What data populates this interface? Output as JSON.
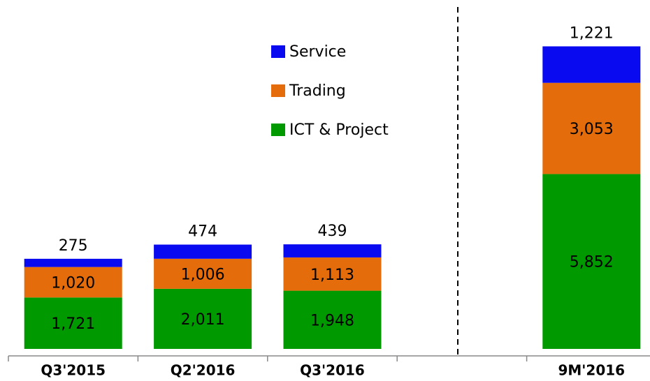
{
  "chart_data": {
    "type": "stacked_bar",
    "categories": [
      "Q3'2015",
      "Q2'2016",
      "Q3'2016",
      null,
      "9M'2016"
    ],
    "series": [
      {
        "name": "ICT & Project",
        "color": "#009900",
        "values": [
          1721,
          2011,
          1948,
          null,
          5852
        ],
        "value_labels": [
          "1,721",
          "2,011",
          "1,948",
          null,
          "5,852"
        ]
      },
      {
        "name": "Trading",
        "color": "#e46c0a",
        "values": [
          1020,
          1006,
          1113,
          null,
          3053
        ],
        "value_labels": [
          "1,020",
          "1,006",
          "1,113",
          null,
          "3,053"
        ]
      },
      {
        "name": "Service",
        "color": "#0a0af0",
        "values": [
          275,
          474,
          439,
          null,
          1221
        ],
        "value_labels": [
          "275",
          "474",
          "439",
          null,
          "1,221"
        ]
      }
    ],
    "ylim": [
      0,
      11000
    ]
  }
}
